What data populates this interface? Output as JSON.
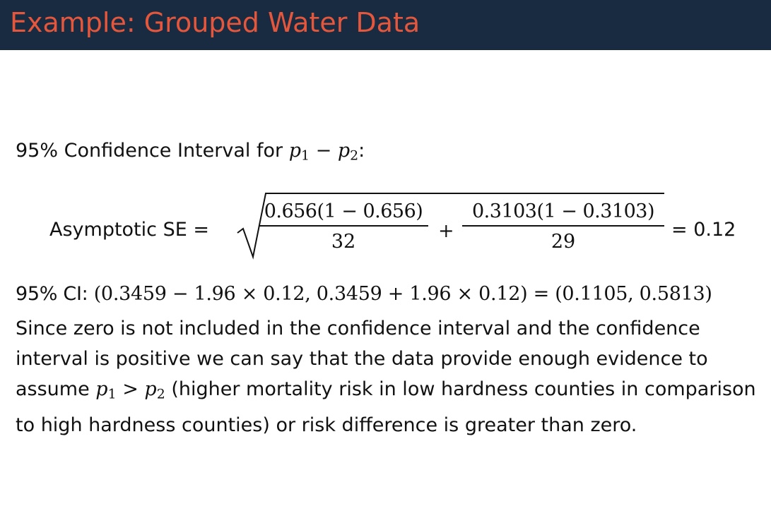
{
  "title": "Example: Grouped Water Data",
  "ci_heading": {
    "prefix": "95% Confidence Interval for ",
    "p": "p",
    "sub1": "1",
    "minus": " − ",
    "sub2": "2",
    "suffix": ":"
  },
  "se_formula": {
    "label": "Asymptotic SE =",
    "frac1_num": "0.656(1 − 0.656)",
    "frac1_den": "32",
    "plus": "+",
    "frac2_num": "0.3103(1 − 0.3103)",
    "frac2_den": "29",
    "result": "= 0.12"
  },
  "ci_line": {
    "label": "95% CI: ",
    "expression": "(0.3459 − 1.96 × 0.12, 0.3459 + 1.96 × 0.12) = (0.1105, 0.5813)"
  },
  "conclusion": {
    "part1": "Since zero is not included in the confidence interval and the confidence interval is positive we can say that the data provide enough evidence to assume ",
    "p": "p",
    "sub1": "1",
    "gt": " > ",
    "sub2": "2",
    "part2": " (higher mortality risk in low hardness counties in comparison to high hardness counties) or risk difference is greater than zero."
  }
}
